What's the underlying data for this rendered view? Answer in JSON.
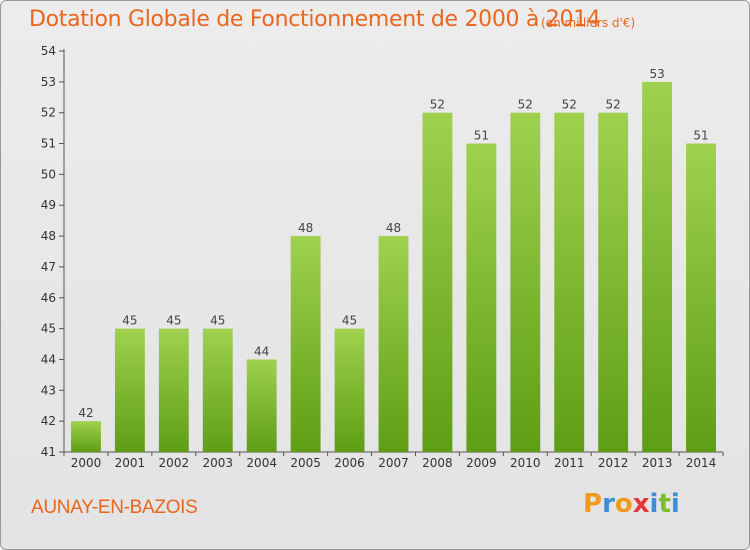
{
  "header": {
    "title": "Dotation Globale de Fonctionnement de 2000 à 2014",
    "unit": "(en milliers d'€)"
  },
  "footer": {
    "commune": "AUNAY-EN-BAZOIS",
    "logo_letters": [
      "P",
      "r",
      "o",
      "x",
      "i",
      "t",
      "i"
    ],
    "logo_colors": [
      "#f39a1e",
      "#3a8fd8",
      "#f39a1e",
      "#e8353b",
      "#3a8fd8",
      "#7cbf2a",
      "#3a8fd8"
    ]
  },
  "chart_data": {
    "type": "bar",
    "title": "Dotation Globale de Fonctionnement de 2000 à 2014",
    "categories": [
      "2000",
      "2001",
      "2002",
      "2003",
      "2004",
      "2005",
      "2006",
      "2007",
      "2008",
      "2009",
      "2010",
      "2011",
      "2012",
      "2013",
      "2014"
    ],
    "values": [
      42,
      45,
      45,
      45,
      44,
      48,
      45,
      48,
      52,
      51,
      52,
      52,
      52,
      53,
      51
    ],
    "ylim": [
      41,
      54
    ],
    "yticks": [
      41,
      42,
      43,
      44,
      45,
      46,
      47,
      48,
      49,
      50,
      51,
      52,
      53,
      54
    ],
    "grid": false,
    "bar_color_top": "#9fd14f",
    "bar_color_bottom": "#5e9e14"
  }
}
